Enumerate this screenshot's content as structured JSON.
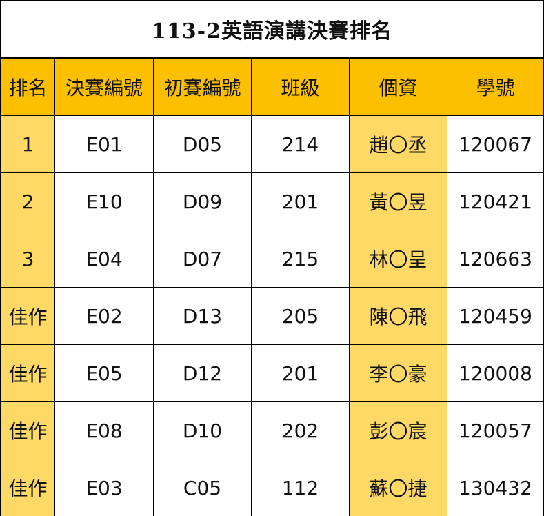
{
  "title": "113-2英語演講決賽排名",
  "colors": {
    "header_bg": "#fcc000",
    "highlight_bg": "#ffd966"
  },
  "headers": [
    "排名",
    "決賽編號",
    "初賽編號",
    "班級",
    "個資",
    "學號"
  ],
  "rows": [
    {
      "rank": "1",
      "final_no": "E01",
      "prelim_no": "D05",
      "class": "214",
      "name": "趙〇丞",
      "student_id": "120067"
    },
    {
      "rank": "2",
      "final_no": "E10",
      "prelim_no": "D09",
      "class": "201",
      "name": "黃〇昱",
      "student_id": "120421"
    },
    {
      "rank": "3",
      "final_no": "E04",
      "prelim_no": "D07",
      "class": "215",
      "name": "林〇呈",
      "student_id": "120663"
    },
    {
      "rank": "佳作",
      "final_no": "E02",
      "prelim_no": "D13",
      "class": "205",
      "name": "陳〇飛",
      "student_id": "120459"
    },
    {
      "rank": "佳作",
      "final_no": "E05",
      "prelim_no": "D12",
      "class": "201",
      "name": "李〇豪",
      "student_id": "120008"
    },
    {
      "rank": "佳作",
      "final_no": "E08",
      "prelim_no": "D10",
      "class": "202",
      "name": "彭〇宸",
      "student_id": "120057"
    },
    {
      "rank": "佳作",
      "final_no": "E03",
      "prelim_no": "C05",
      "class": "112",
      "name": "蘇〇捷",
      "student_id": "130432"
    }
  ]
}
